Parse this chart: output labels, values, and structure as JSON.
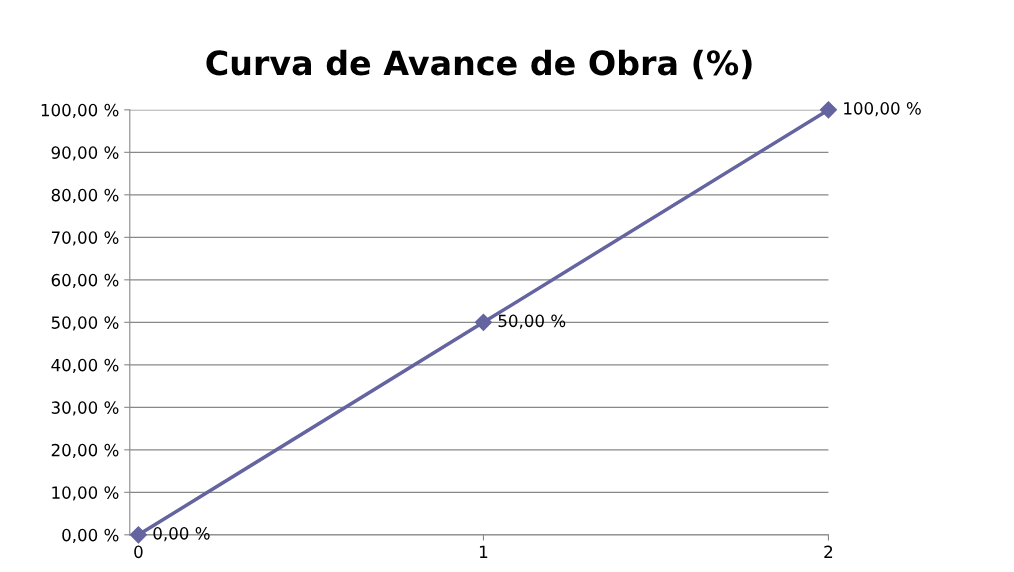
{
  "chart_data": {
    "type": "line",
    "title": "Curva de Avance de Obra (%)",
    "x": [
      0,
      1,
      2
    ],
    "series": [
      {
        "color": "#6464a0",
        "values": [
          0,
          50,
          100
        ],
        "value_labels": [
          "0,00 %",
          "50,00 %",
          "100,00 %"
        ]
      }
    ],
    "xlim": [
      -0.025,
      2
    ],
    "xticks": [
      0,
      1,
      2
    ],
    "ylim": [
      0,
      100
    ],
    "yticks": [
      {
        "value": 0,
        "label": "0,00 %"
      },
      {
        "value": 10,
        "label": "10,00 %"
      },
      {
        "value": 20,
        "label": "20,00 %"
      },
      {
        "value": 30,
        "label": "30,00 %"
      },
      {
        "value": 40,
        "label": "40,00 %"
      },
      {
        "value": 50,
        "label": "50,00 %"
      },
      {
        "value": 60,
        "label": "60,00 %"
      },
      {
        "value": 70,
        "label": "70,00 %"
      },
      {
        "value": 80,
        "label": "80,00 %"
      },
      {
        "value": 90,
        "label": "90,00 %"
      },
      {
        "value": 100,
        "label": "100,00 %"
      }
    ],
    "grid": "y",
    "marker": "diamond",
    "line_style": "solid"
  }
}
